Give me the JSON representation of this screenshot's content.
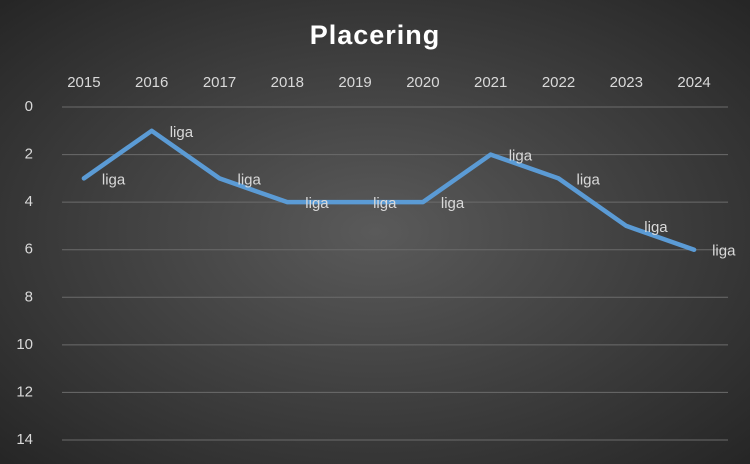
{
  "chart_data": {
    "type": "line",
    "title": "Placering",
    "categories": [
      "2015",
      "2016",
      "2017",
      "2018",
      "2019",
      "2020",
      "2021",
      "2022",
      "2023",
      "2024"
    ],
    "series": [
      {
        "name": "liga",
        "color": "#5b9bd5",
        "values": [
          3,
          1,
          3,
          4,
          4,
          4,
          2,
          3,
          5,
          6
        ]
      }
    ],
    "ylim": [
      0,
      14
    ],
    "yticks": [
      0,
      2,
      4,
      6,
      8,
      10,
      12,
      14
    ],
    "y_inverted": true,
    "grid": true,
    "x_axis_position": "top",
    "data_labels": "series_name"
  }
}
